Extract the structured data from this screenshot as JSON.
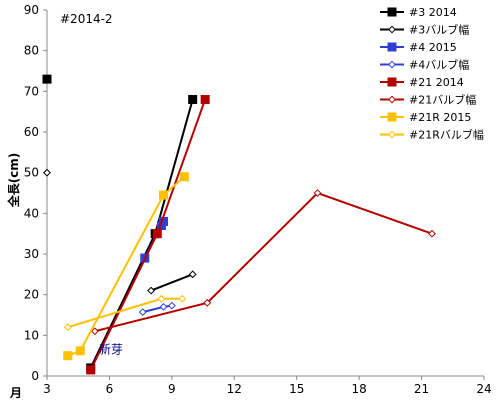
{
  "chart_data": {
    "type": "line",
    "title": "#2014-2",
    "ylabel": "全長(cm)",
    "xlabel_left": "月",
    "xlim": [
      3,
      24
    ],
    "ylim": [
      0,
      90
    ],
    "x_ticks": [
      3,
      6,
      9,
      12,
      15,
      18,
      21,
      24
    ],
    "y_ticks": [
      0,
      10,
      20,
      30,
      40,
      50,
      60,
      70,
      80,
      90
    ],
    "grid": false,
    "legend_position": "right",
    "annotation": {
      "text": "新芽",
      "x": 5.5,
      "y": 6.5
    },
    "series": [
      {
        "name": "#3 2014",
        "color": "#000000",
        "marker": "square",
        "marker_fill": "filled",
        "points": [
          [
            3.0,
            73
          ],
          [
            5.1,
            2
          ],
          [
            8.2,
            35
          ],
          [
            10.0,
            68
          ]
        ],
        "line_from": 1
      },
      {
        "name": "#3バルブ幅",
        "color": "#000000",
        "marker": "diamond",
        "marker_fill": "open",
        "points": [
          [
            3.0,
            50
          ],
          [
            8.0,
            21
          ],
          [
            10.0,
            25
          ]
        ],
        "line_from": 1
      },
      {
        "name": "#4 2015",
        "color": "#2f3fd6",
        "marker": "square",
        "marker_fill": "filled",
        "points": [
          [
            7.7,
            29
          ],
          [
            8.5,
            37
          ],
          [
            8.6,
            38
          ]
        ]
      },
      {
        "name": "#4バルブ幅",
        "color": "#2f3fd6",
        "marker": "diamond",
        "marker_fill": "open",
        "points": [
          [
            7.6,
            15.7
          ],
          [
            8.6,
            17
          ],
          [
            9.0,
            17.3
          ]
        ]
      },
      {
        "name": "#21 2014",
        "color": "#b30000",
        "marker": "square",
        "marker_fill": "filled",
        "points": [
          [
            5.1,
            1.5
          ],
          [
            8.3,
            35
          ],
          [
            10.6,
            68
          ]
        ]
      },
      {
        "name": "#21バルブ幅",
        "color": "#b30000",
        "marker": "diamond",
        "marker_fill": "open",
        "points": [
          [
            5.3,
            11
          ],
          [
            10.7,
            18
          ],
          [
            16.0,
            45
          ],
          [
            21.5,
            35
          ]
        ]
      },
      {
        "name": "#21R 2015",
        "color": "#ffc000",
        "marker": "square",
        "marker_fill": "filled",
        "points": [
          [
            4.0,
            5
          ],
          [
            4.6,
            6.2
          ],
          [
            8.6,
            44.5
          ],
          [
            9.6,
            49
          ]
        ]
      },
      {
        "name": "#21Rバルブ幅",
        "color": "#ffc000",
        "marker": "diamond",
        "marker_fill": "open",
        "points": [
          [
            4.0,
            12
          ],
          [
            8.5,
            19
          ],
          [
            9.5,
            19
          ]
        ]
      }
    ]
  }
}
